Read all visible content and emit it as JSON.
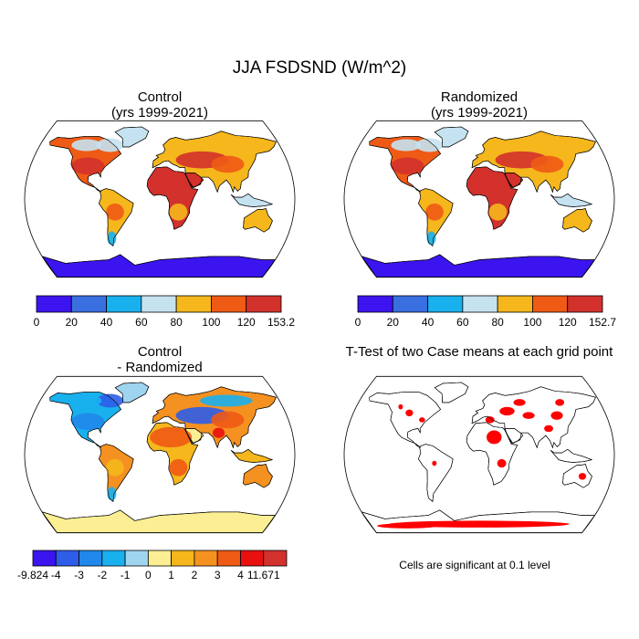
{
  "title": "JJA FSDSND (W/m^2)",
  "panels": [
    {
      "id": "control",
      "title": [
        "Control",
        "(yrs 1999-2021)"
      ],
      "field": "abs_control"
    },
    {
      "id": "randomized",
      "title": [
        "Randomized",
        "(yrs 1999-2021)"
      ],
      "field": "abs_random"
    },
    {
      "id": "difference",
      "title": [
        "Control",
        "- Randomized"
      ],
      "field": "diff"
    },
    {
      "id": "ttest",
      "title": [
        "T-Test of two Case means at each grid point"
      ],
      "field": "sig"
    }
  ],
  "colorbars": [
    {
      "id": "control-colorbar",
      "colors": [
        "#3c14ef",
        "#3a6fe0",
        "#19b0ee",
        "#c5e2f1",
        "#f5b71c",
        "#ef5a15",
        "#d3312c"
      ],
      "labels": [
        "0",
        "20",
        "40",
        "60",
        "80",
        "100",
        "120",
        "153.2"
      ]
    },
    {
      "id": "randomized-colorbar",
      "colors": [
        "#3c14ef",
        "#3a6fe0",
        "#19b0ee",
        "#c5e2f1",
        "#f5b71c",
        "#ef5a15",
        "#d3312c"
      ],
      "labels": [
        "0",
        "20",
        "40",
        "60",
        "80",
        "100",
        "120",
        "152.7"
      ]
    },
    {
      "id": "difference-colorbar",
      "colors": [
        "#3c14ef",
        "#2e5de8",
        "#2088ea",
        "#19b0ee",
        "#9fd4ef",
        "#fbee93",
        "#f5b71c",
        "#f59120",
        "#ef5a15",
        "#e8110f",
        "#d3312c"
      ],
      "labels": [
        "-9.824",
        "-4",
        "-3",
        "-2",
        "-1",
        "0",
        "1",
        "2",
        "3",
        "4",
        "11.671"
      ]
    }
  ],
  "significance": {
    "color": "#ff0000",
    "note": "Cells are significant at 0.1 level"
  }
}
